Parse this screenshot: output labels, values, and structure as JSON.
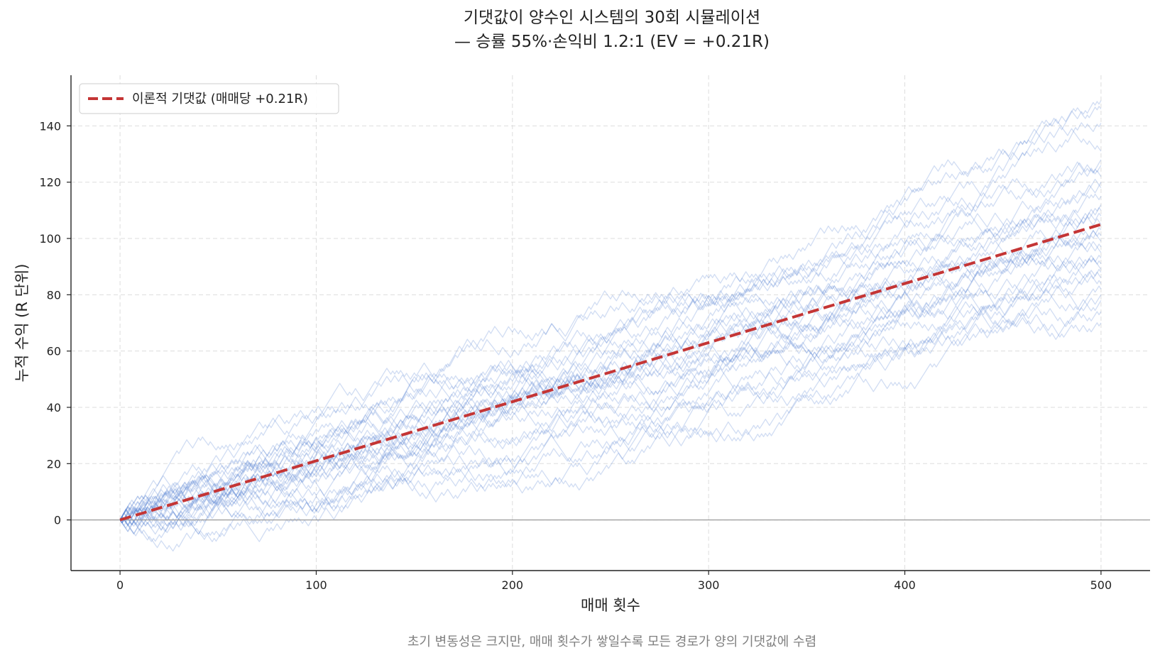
{
  "chart_data": {
    "type": "line",
    "title": [
      "기댓값이 양수인 시스템의 30회 시뮬레이션",
      "— 승률 55%·손익비 1.2:1 (EV = +0.21R)"
    ],
    "xlabel": "매매 횟수",
    "ylabel": "누적 수익 (R 단위)",
    "caption": "초기 변동성은 크지만, 매매 횟수가 쌓일수록 모든 경로가 양의 기댓값에 수렴",
    "xlim": [
      -25,
      525
    ],
    "ylim": [
      -18,
      158
    ],
    "xticks": [
      0,
      100,
      200,
      300,
      400,
      500
    ],
    "yticks": [
      0,
      20,
      40,
      60,
      80,
      100,
      120,
      140
    ],
    "grid": true,
    "legend": {
      "placement": "top-left",
      "entries": [
        "이론적 기댓값 (매매당 +0.21R)"
      ]
    },
    "reference_line": {
      "y": 0,
      "color": "#999999"
    },
    "expected_value": {
      "slope_per_trade": 0.21,
      "x": [
        0,
        500
      ],
      "y": [
        0,
        105
      ],
      "color": "#c43535"
    },
    "simulation": {
      "paths": 30,
      "trades": 500,
      "win_rate": 0.55,
      "win_R": 1.2,
      "loss_R": -1.0,
      "color": "#5a84d4",
      "final_values": [
        149,
        146,
        141,
        131,
        128,
        126,
        122,
        120,
        118,
        115,
        112,
        110,
        108,
        105,
        103,
        101,
        99,
        97,
        95,
        93,
        91,
        89,
        88,
        86,
        84,
        82,
        80,
        78,
        74,
        70
      ]
    }
  }
}
